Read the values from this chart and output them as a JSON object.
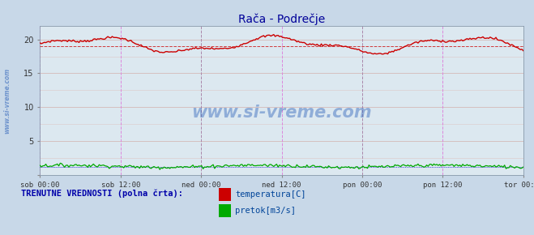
{
  "title": "Rača - Podrečje",
  "title_color": "#000099",
  "bg_color": "#c8d8e8",
  "plot_bg_color": "#dce8f0",
  "x_labels": [
    "sob 00:00",
    "sob 12:00",
    "ned 00:00",
    "ned 12:00",
    "pon 00:00",
    "pon 12:00",
    "tor 00:00"
  ],
  "ylim": [
    0,
    22
  ],
  "yticks": [
    0,
    5,
    10,
    15,
    20
  ],
  "temp_color": "#cc0000",
  "flow_color": "#00aa00",
  "blue_dot_color": "#0000cc",
  "temp_avg_val": 19.0,
  "flow_avg_val": 1.2,
  "watermark_text": "www.si-vreme.com",
  "watermark_color": "#3366bb",
  "watermark_alpha": 0.45,
  "legend_label": "TRENUTNE VREDNOSTI (polna črta):",
  "legend_temp": "temperatura[C]",
  "legend_flow": "pretok[m3/s]",
  "ylabel_text": "www.si-vreme.com",
  "n_points": 336,
  "hgrid_color": "#c8b0b0",
  "vgrid_magenta": "#dd88dd",
  "vgrid_dark": "#aa88aa"
}
